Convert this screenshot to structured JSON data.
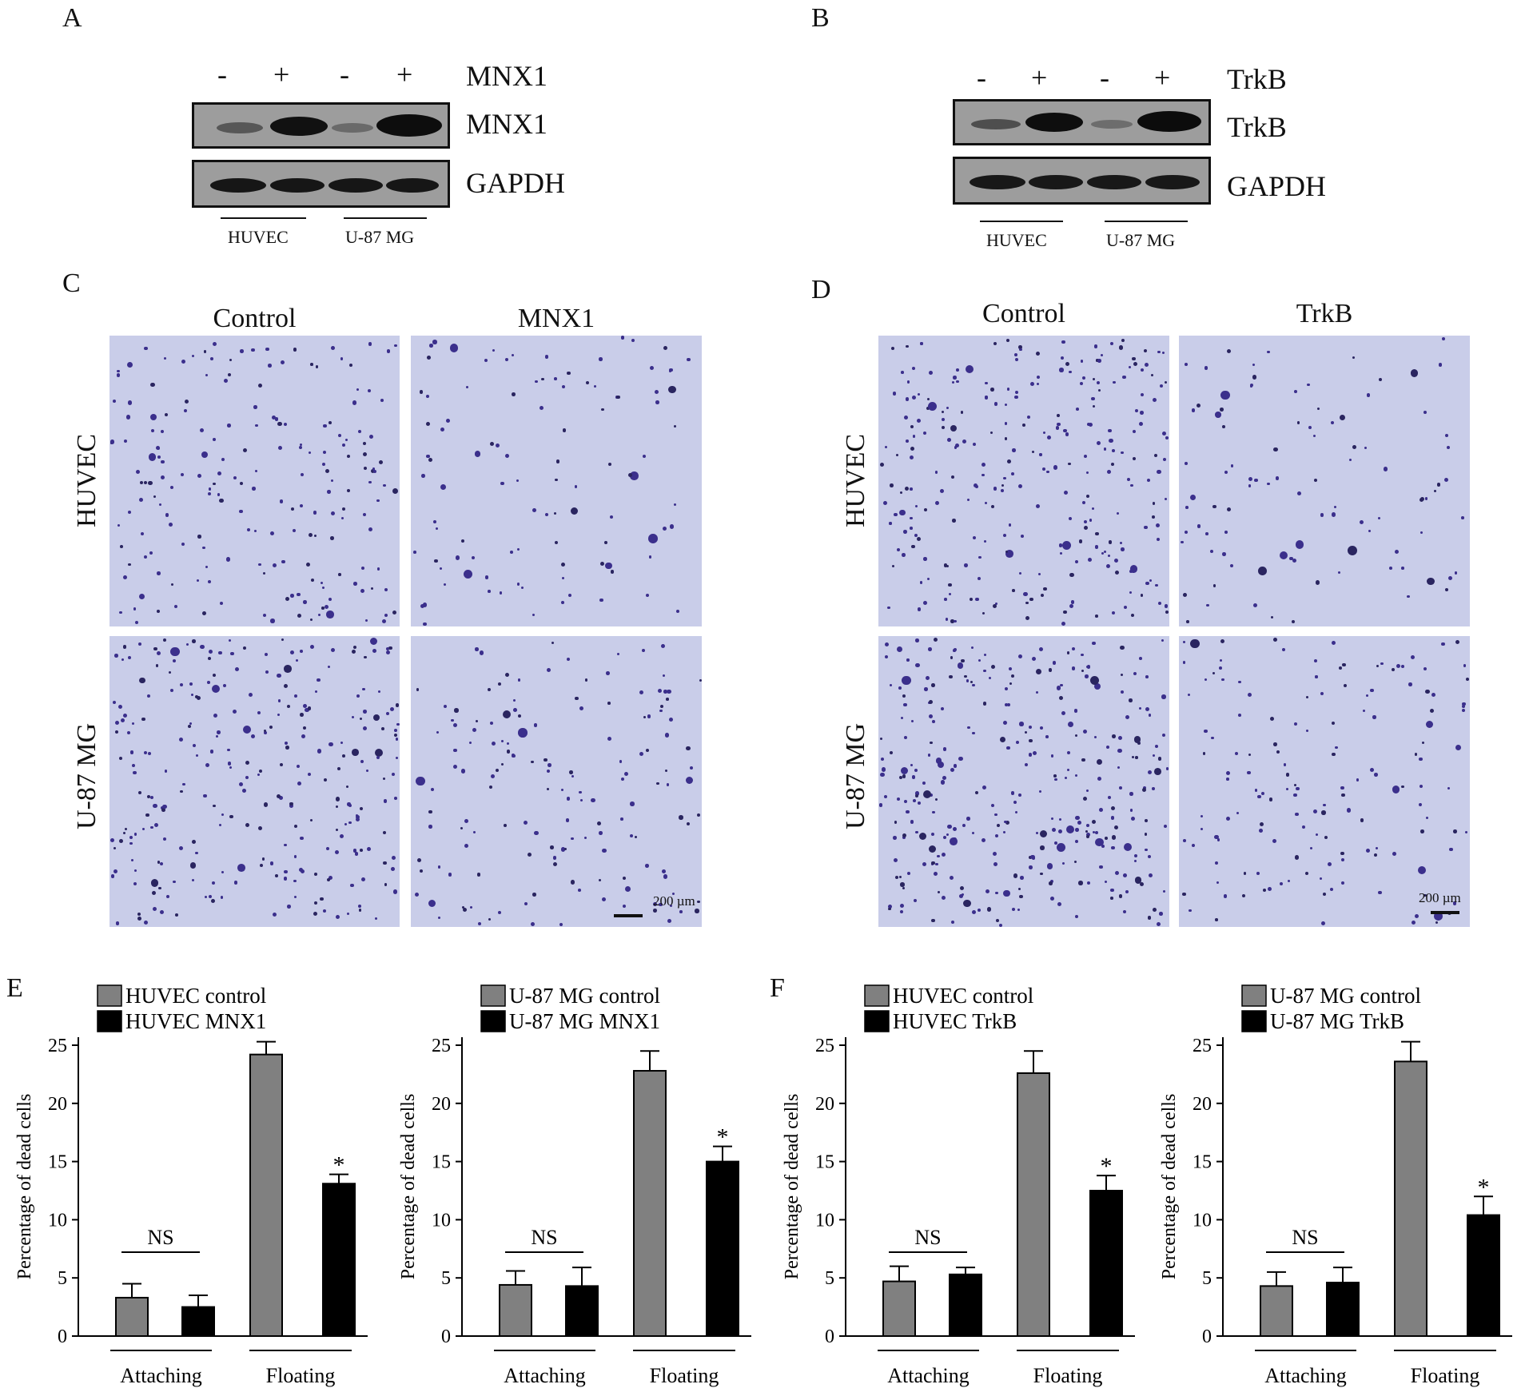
{
  "panels": {
    "a": {
      "letter": "A",
      "treatments": [
        "-",
        "+",
        "-",
        "+"
      ],
      "treat_label": "MNX1",
      "blot1_label": "MNX1",
      "blot2_label": "GAPDH",
      "cell_lines": [
        "HUVEC",
        "U-87 MG"
      ]
    },
    "b": {
      "letter": "B",
      "treatments": [
        "-",
        "+",
        "-",
        "+"
      ],
      "treat_label": "TrkB",
      "blot1_label": "TrkB",
      "blot2_label": "GAPDH",
      "cell_lines": [
        "HUVEC",
        "U-87 MG"
      ]
    },
    "c": {
      "letter": "C",
      "col_titles": [
        "Control",
        "MNX1"
      ],
      "row_labels": [
        "HUVEC",
        "U-87 MG"
      ],
      "scale": "200 µm"
    },
    "d": {
      "letter": "D",
      "col_titles": [
        "Control",
        "TrkB"
      ],
      "row_labels": [
        "HUVEC",
        "U-87 MG"
      ],
      "scale": "200 µm"
    },
    "e": {
      "letter": "E"
    },
    "f": {
      "letter": "F"
    }
  },
  "colors": {
    "control_bar": "#808080",
    "treatment_bar": "#000000",
    "stain": "#3b2f8c",
    "field": "#c9cde9",
    "blot": "#9d9d9d"
  },
  "chart_data": [
    {
      "type": "bar",
      "ylabel": "Percentage of dead cells",
      "ylim": [
        0,
        25
      ],
      "yticks": [
        0,
        5,
        10,
        15,
        20,
        25
      ],
      "groups": [
        "Attaching",
        "Floating"
      ],
      "series": [
        {
          "name": "HUVEC control",
          "values": [
            3.3,
            24.2
          ],
          "errors": [
            1.2,
            1.1
          ]
        },
        {
          "name": "HUVEC MNX1",
          "values": [
            2.5,
            13.1
          ],
          "errors": [
            1.0,
            0.8
          ]
        }
      ],
      "annotations": {
        "ns_label": "NS",
        "sig_label": "*"
      }
    },
    {
      "type": "bar",
      "ylabel": "Percentage of dead cells",
      "ylim": [
        0,
        25
      ],
      "yticks": [
        0,
        5,
        10,
        15,
        20,
        25
      ],
      "groups": [
        "Attaching",
        "Floating"
      ],
      "series": [
        {
          "name": "U-87 MG control",
          "values": [
            4.4,
            22.8
          ],
          "errors": [
            1.2,
            1.7
          ]
        },
        {
          "name": "U-87 MG MNX1",
          "values": [
            4.3,
            15.0
          ],
          "errors": [
            1.6,
            1.3
          ]
        }
      ],
      "annotations": {
        "ns_label": "NS",
        "sig_label": "*"
      }
    },
    {
      "type": "bar",
      "ylabel": "Percentage of dead cells",
      "ylim": [
        0,
        25
      ],
      "yticks": [
        0,
        5,
        10,
        15,
        20,
        25
      ],
      "groups": [
        "Attaching",
        "Floating"
      ],
      "series": [
        {
          "name": "HUVEC control",
          "values": [
            4.7,
            22.6
          ],
          "errors": [
            1.3,
            1.9
          ]
        },
        {
          "name": "HUVEC TrkB",
          "values": [
            5.3,
            12.5
          ],
          "errors": [
            0.6,
            1.3
          ]
        }
      ],
      "annotations": {
        "ns_label": "NS",
        "sig_label": "*"
      }
    },
    {
      "type": "bar",
      "ylabel": "Percentage of dead cells",
      "ylim": [
        0,
        25
      ],
      "yticks": [
        0,
        5,
        10,
        15,
        20,
        25
      ],
      "groups": [
        "Attaching",
        "Floating"
      ],
      "series": [
        {
          "name": "U-87 MG control",
          "values": [
            4.3,
            23.6
          ],
          "errors": [
            1.2,
            1.7
          ]
        },
        {
          "name": "U-87 MG TrkB",
          "values": [
            4.6,
            10.4
          ],
          "errors": [
            1.3,
            1.6
          ]
        }
      ],
      "annotations": {
        "ns_label": "NS",
        "sig_label": "*"
      }
    }
  ]
}
